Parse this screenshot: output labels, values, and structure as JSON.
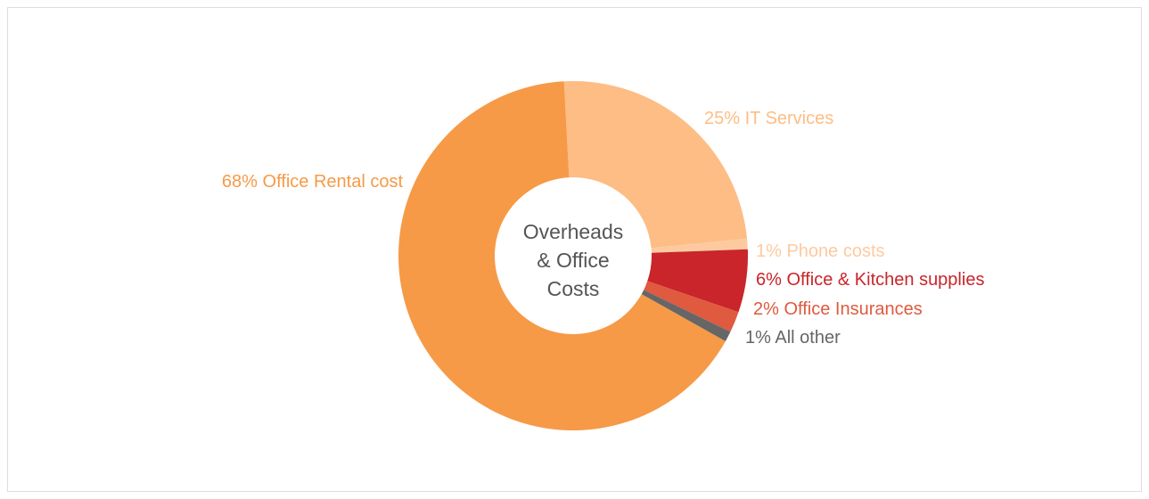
{
  "chart_data": {
    "type": "donut",
    "title": [
      "Overheads",
      "& Office",
      "Costs"
    ],
    "categories": [
      "IT Services",
      "Phone costs",
      "Office & Kitchen supplies",
      "Office Insurances",
      "All other",
      "Office Rental cost"
    ],
    "values": [
      25,
      1,
      6,
      2,
      1,
      68
    ],
    "value_labels": [
      "25%",
      "1%",
      "6%",
      "2%",
      "1%",
      "68%"
    ],
    "colors": [
      "#fdbd85",
      "#fdcaa0",
      "#c9252a",
      "#df5a3f",
      "#666666",
      "#f69a47"
    ]
  }
}
